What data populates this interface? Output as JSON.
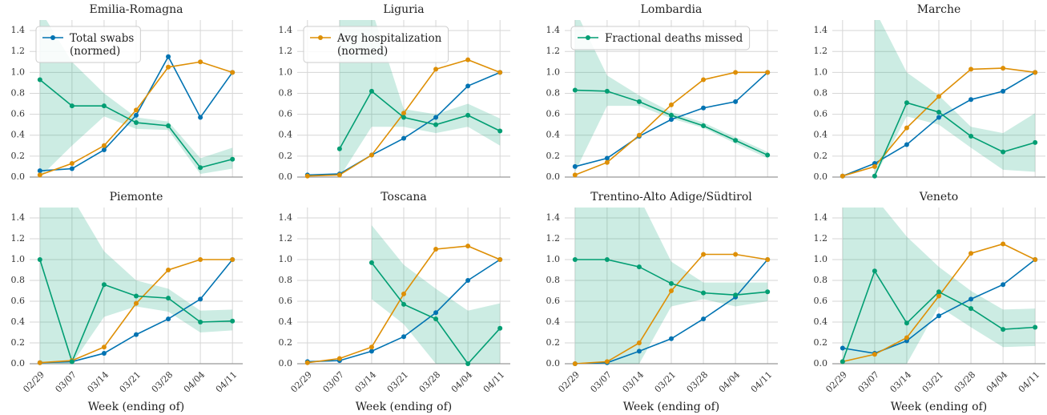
{
  "chart_data": [
    {
      "type": "line",
      "title": "Emilia-Romagna",
      "categories": [
        null,
        null,
        null,
        null,
        null,
        null,
        null
      ],
      "ylim": [
        0,
        1.5
      ],
      "yticks": [
        {
          "value": 0,
          "label": "0.0"
        },
        {
          "value": 0.2,
          "label": "0.2"
        },
        {
          "value": 0.4,
          "label": "0.4"
        },
        {
          "value": 0.6,
          "label": "0.6"
        },
        {
          "value": 0.8,
          "label": "0.8"
        },
        {
          "value": 1.0,
          "label": "1.0"
        },
        {
          "value": 1.2,
          "label": "1.2"
        },
        {
          "value": 1.4,
          "label": "1.4"
        }
      ],
      "grid": true,
      "series": [
        {
          "name": "Total swabs\n(normed)",
          "color": "#0173b2",
          "values": [
            0.06,
            0.08,
            0.26,
            0.59,
            1.15,
            0.57,
            1.0
          ]
        },
        {
          "color": "#de8f05",
          "values": [
            0.02,
            0.13,
            0.3,
            0.64,
            1.05,
            1.1,
            1.0
          ]
        },
        {
          "color": "#029e73",
          "values": [
            0.93,
            0.68,
            0.68,
            0.52,
            0.49,
            0.09,
            0.17
          ],
          "lower": [
            0.0,
            0.3,
            0.58,
            0.46,
            0.45,
            0.03,
            0.08
          ],
          "upper": [
            1.6,
            1.1,
            0.8,
            0.57,
            0.53,
            0.18,
            0.28
          ]
        }
      ]
    },
    {
      "type": "line",
      "title": "Liguria",
      "categories": [
        null,
        null,
        null,
        null,
        null,
        null,
        null
      ],
      "ylim": [
        0,
        1.5
      ],
      "yticks": [
        {
          "value": 0,
          "label": "0.0"
        },
        {
          "value": 0.2,
          "label": "0.2"
        },
        {
          "value": 0.4,
          "label": "0.4"
        },
        {
          "value": 0.6,
          "label": "0.6"
        },
        {
          "value": 0.8,
          "label": "0.8"
        },
        {
          "value": 1.0,
          "label": "1.0"
        },
        {
          "value": 1.2,
          "label": "1.2"
        },
        {
          "value": 1.4,
          "label": "1.4"
        }
      ],
      "grid": true,
      "series": [
        {
          "color": "#0173b2",
          "values": [
            0.02,
            0.03,
            0.21,
            0.37,
            0.57,
            0.87,
            1.0
          ]
        },
        {
          "name": "Avg hospitalization\n(normed)",
          "color": "#de8f05",
          "values": [
            0.01,
            0.02,
            0.21,
            0.61,
            1.03,
            1.12,
            1.0
          ]
        },
        {
          "color": "#029e73",
          "values": [
            null,
            0.27,
            0.82,
            0.57,
            0.5,
            0.59,
            0.44
          ],
          "lower": [
            null,
            0.0,
            0.48,
            0.48,
            0.42,
            0.48,
            0.3
          ],
          "upper": [
            null,
            1.6,
            1.6,
            0.65,
            0.6,
            0.7,
            0.56
          ]
        }
      ]
    },
    {
      "type": "line",
      "title": "Lombardia",
      "categories": [
        null,
        null,
        null,
        null,
        null,
        null,
        null
      ],
      "ylim": [
        0,
        1.5
      ],
      "yticks": [
        {
          "value": 0,
          "label": "0.0"
        },
        {
          "value": 0.2,
          "label": "0.2"
        },
        {
          "value": 0.4,
          "label": "0.4"
        },
        {
          "value": 0.6,
          "label": "0.6"
        },
        {
          "value": 0.8,
          "label": "0.8"
        },
        {
          "value": 1.0,
          "label": "1.0"
        },
        {
          "value": 1.2,
          "label": "1.2"
        },
        {
          "value": 1.4,
          "label": "1.4"
        }
      ],
      "grid": true,
      "series": [
        {
          "color": "#0173b2",
          "values": [
            0.1,
            0.18,
            0.39,
            0.55,
            0.66,
            0.72,
            1.0
          ]
        },
        {
          "color": "#de8f05",
          "values": [
            0.02,
            0.14,
            0.4,
            0.69,
            0.93,
            1.0,
            1.0
          ]
        },
        {
          "name": "Fractional deaths missed",
          "color": "#029e73",
          "values": [
            0.83,
            0.82,
            0.72,
            0.59,
            0.49,
            0.35,
            0.21
          ],
          "lower": [
            0.05,
            0.68,
            0.68,
            0.56,
            0.47,
            0.32,
            0.18
          ],
          "upper": [
            1.6,
            0.97,
            0.78,
            0.62,
            0.52,
            0.38,
            0.24
          ]
        }
      ]
    },
    {
      "type": "line",
      "title": "Marche",
      "categories": [
        null,
        null,
        null,
        null,
        null,
        null,
        null
      ],
      "ylim": [
        0,
        1.5
      ],
      "yticks": [
        {
          "value": 0,
          "label": "0.0"
        },
        {
          "value": 0.2,
          "label": "0.2"
        },
        {
          "value": 0.4,
          "label": "0.4"
        },
        {
          "value": 0.6,
          "label": "0.6"
        },
        {
          "value": 0.8,
          "label": "0.8"
        },
        {
          "value": 1.0,
          "label": "1.0"
        },
        {
          "value": 1.2,
          "label": "1.2"
        },
        {
          "value": 1.4,
          "label": "1.4"
        }
      ],
      "grid": true,
      "series": [
        {
          "color": "#0173b2",
          "values": [
            0.01,
            0.13,
            0.31,
            0.57,
            0.74,
            0.82,
            1.0
          ]
        },
        {
          "color": "#de8f05",
          "values": [
            0.01,
            0.1,
            0.47,
            0.77,
            1.03,
            1.04,
            1.0
          ]
        },
        {
          "color": "#029e73",
          "values": [
            null,
            0.01,
            0.71,
            0.62,
            0.39,
            0.24,
            0.33
          ],
          "lower": [
            null,
            0.0,
            0.58,
            0.5,
            0.28,
            0.07,
            0.05
          ],
          "upper": [
            null,
            1.6,
            1.0,
            0.78,
            0.48,
            0.42,
            0.61
          ]
        }
      ]
    },
    {
      "type": "line",
      "title": "Piemonte",
      "xlabel": "Week (ending of)",
      "categories": [
        "02/29",
        "03/07",
        "03/14",
        "03/21",
        "03/28",
        "04/04",
        "04/11"
      ],
      "ylim": [
        0,
        1.5
      ],
      "yticks": [
        {
          "value": 0,
          "label": "0.0"
        },
        {
          "value": 0.2,
          "label": "0.2"
        },
        {
          "value": 0.4,
          "label": "0.4"
        },
        {
          "value": 0.6,
          "label": "0.6"
        },
        {
          "value": 0.8,
          "label": "0.8"
        },
        {
          "value": 1.0,
          "label": "1.0"
        },
        {
          "value": 1.2,
          "label": "1.2"
        },
        {
          "value": 1.4,
          "label": "1.4"
        }
      ],
      "grid": true,
      "series": [
        {
          "color": "#0173b2",
          "values": [
            0.01,
            0.02,
            0.1,
            0.28,
            0.43,
            0.62,
            1.0
          ]
        },
        {
          "color": "#de8f05",
          "values": [
            0.01,
            0.03,
            0.16,
            0.58,
            0.9,
            1.0,
            1.0
          ]
        },
        {
          "color": "#029e73",
          "values": [
            1.0,
            0.02,
            0.76,
            0.65,
            0.63,
            0.4,
            0.41
          ],
          "lower": [
            0.0,
            0.0,
            0.45,
            0.55,
            0.5,
            0.3,
            0.32
          ],
          "upper": [
            1.6,
            1.6,
            1.08,
            0.8,
            0.72,
            0.51,
            0.52
          ]
        }
      ]
    },
    {
      "type": "line",
      "title": "Toscana",
      "xlabel": "Week (ending of)",
      "categories": [
        "02/29",
        "03/07",
        "03/14",
        "03/21",
        "03/28",
        "04/04",
        "04/11"
      ],
      "ylim": [
        0,
        1.5
      ],
      "yticks": [
        {
          "value": 0,
          "label": "0.0"
        },
        {
          "value": 0.2,
          "label": "0.2"
        },
        {
          "value": 0.4,
          "label": "0.4"
        },
        {
          "value": 0.6,
          "label": "0.6"
        },
        {
          "value": 0.8,
          "label": "0.8"
        },
        {
          "value": 1.0,
          "label": "1.0"
        },
        {
          "value": 1.2,
          "label": "1.2"
        },
        {
          "value": 1.4,
          "label": "1.4"
        }
      ],
      "grid": true,
      "series": [
        {
          "color": "#0173b2",
          "values": [
            0.02,
            0.03,
            0.12,
            0.26,
            0.49,
            0.8,
            1.0
          ]
        },
        {
          "color": "#de8f05",
          "values": [
            0.01,
            0.05,
            0.16,
            0.67,
            1.1,
            1.13,
            1.0
          ]
        },
        {
          "color": "#029e73",
          "values": [
            null,
            null,
            0.97,
            0.57,
            0.43,
            0.0,
            0.34
          ],
          "lower": [
            null,
            null,
            0.62,
            0.38,
            0.0,
            0.0,
            0.0
          ],
          "upper": [
            null,
            null,
            1.33,
            0.95,
            0.72,
            0.51,
            0.58
          ]
        }
      ]
    },
    {
      "type": "line",
      "title": "Trentino-Alto Adige/Südtirol",
      "xlabel": "Week (ending of)",
      "categories": [
        "02/29",
        "03/07",
        "03/14",
        "03/21",
        "03/28",
        "04/04",
        "04/11"
      ],
      "ylim": [
        0,
        1.5
      ],
      "yticks": [
        {
          "value": 0,
          "label": "0.0"
        },
        {
          "value": 0.2,
          "label": "0.2"
        },
        {
          "value": 0.4,
          "label": "0.4"
        },
        {
          "value": 0.6,
          "label": "0.6"
        },
        {
          "value": 0.8,
          "label": "0.8"
        },
        {
          "value": 1.0,
          "label": "1.0"
        },
        {
          "value": 1.2,
          "label": "1.2"
        },
        {
          "value": 1.4,
          "label": "1.4"
        }
      ],
      "grid": true,
      "series": [
        {
          "color": "#0173b2",
          "values": [
            0.0,
            0.01,
            0.12,
            0.24,
            0.43,
            0.64,
            1.0
          ]
        },
        {
          "color": "#de8f05",
          "values": [
            0.0,
            0.02,
            0.2,
            0.7,
            1.05,
            1.05,
            1.0
          ]
        },
        {
          "color": "#029e73",
          "values": [
            1.0,
            1.0,
            0.93,
            0.77,
            0.68,
            0.66,
            0.69
          ],
          "lower": [
            0.0,
            0.0,
            0.0,
            0.55,
            0.62,
            0.55,
            0.6
          ],
          "upper": [
            1.6,
            1.6,
            1.6,
            0.98,
            0.78,
            0.78,
            0.78
          ]
        }
      ]
    },
    {
      "type": "line",
      "title": "Veneto",
      "xlabel": "Week (ending of)",
      "categories": [
        "02/29",
        "03/07",
        "03/14",
        "03/21",
        "03/28",
        "04/04",
        "04/11"
      ],
      "ylim": [
        0,
        1.5
      ],
      "yticks": [
        {
          "value": 0,
          "label": "0.0"
        },
        {
          "value": 0.2,
          "label": "0.2"
        },
        {
          "value": 0.4,
          "label": "0.4"
        },
        {
          "value": 0.6,
          "label": "0.6"
        },
        {
          "value": 0.8,
          "label": "0.8"
        },
        {
          "value": 1.0,
          "label": "1.0"
        },
        {
          "value": 1.2,
          "label": "1.2"
        },
        {
          "value": 1.4,
          "label": "1.4"
        }
      ],
      "grid": true,
      "series": [
        {
          "color": "#0173b2",
          "values": [
            0.15,
            0.1,
            0.22,
            0.46,
            0.62,
            0.76,
            1.0
          ]
        },
        {
          "color": "#de8f05",
          "values": [
            0.02,
            0.09,
            0.25,
            0.65,
            1.06,
            1.15,
            1.0
          ]
        },
        {
          "color": "#029e73",
          "values": [
            0.02,
            0.89,
            0.39,
            0.69,
            0.53,
            0.33,
            0.35
          ],
          "lower": [
            0.0,
            0.0,
            0.0,
            0.55,
            0.35,
            0.16,
            0.17
          ],
          "upper": [
            1.6,
            1.6,
            1.22,
            0.93,
            0.7,
            0.52,
            0.53
          ]
        }
      ]
    }
  ]
}
